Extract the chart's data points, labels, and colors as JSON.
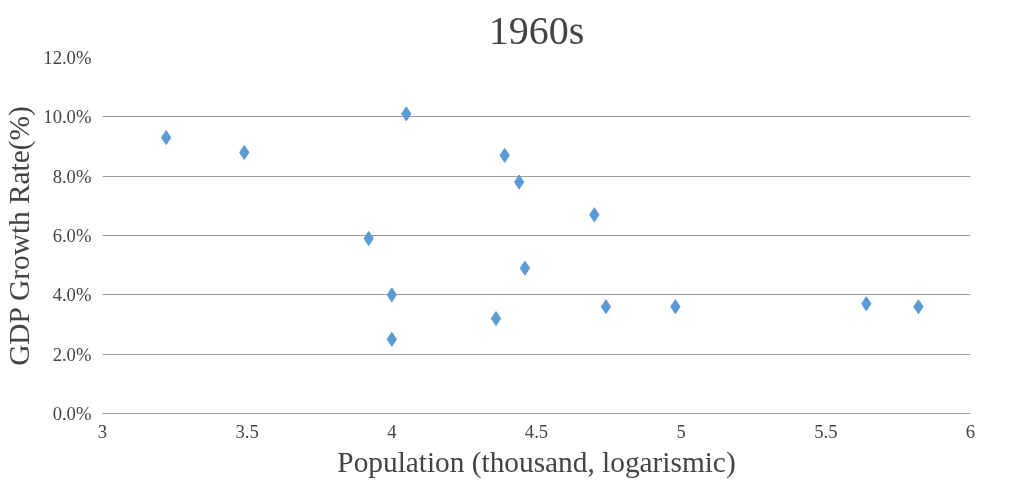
{
  "chart_data": {
    "type": "scatter",
    "title": "1960s",
    "xlabel": "Population (thousand, logarismic)",
    "ylabel": "GDP Growth Rate(%)",
    "x": [
      3.22,
      3.49,
      4.05,
      4.39,
      4.44,
      4.7,
      3.92,
      4.46,
      4.0,
      4.0,
      4.36,
      4.74,
      4.98,
      5.64,
      5.82
    ],
    "series": [
      {
        "color": "#5b9bd5",
        "values": [
          9.3,
          8.8,
          10.1,
          8.7,
          7.8,
          6.7,
          5.9,
          4.9,
          4.0,
          2.5,
          3.2,
          3.6,
          3.6,
          3.7,
          3.6
        ]
      }
    ],
    "xlim": [
      3,
      6
    ],
    "xticks": [
      3,
      3.5,
      4,
      4.5,
      5,
      5.5,
      6
    ],
    "ylim": [
      0,
      12
    ],
    "yticks": [
      {
        "value": 0,
        "label": "0.0%"
      },
      {
        "value": 2,
        "label": "2.0%"
      },
      {
        "value": 4,
        "label": "4.0%"
      },
      {
        "value": 6,
        "label": "6.0%"
      },
      {
        "value": 8,
        "label": "8.0%"
      },
      {
        "value": 10,
        "label": "10.0%"
      },
      {
        "value": 12,
        "label": "12.0%"
      }
    ],
    "grid": "y",
    "marker": "diamond"
  }
}
